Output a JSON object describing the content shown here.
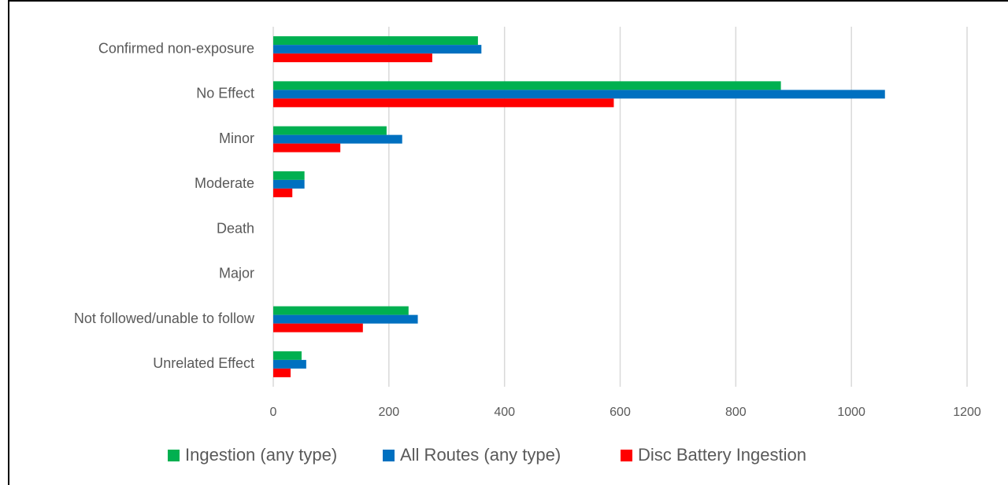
{
  "chart_data": {
    "type": "hbar",
    "categories": [
      "Confirmed non-exposure",
      "No Effect",
      "Minor",
      "Moderate",
      "Death",
      "Major",
      "Not followed/unable to follow",
      "Unrelated Effect"
    ],
    "series": [
      {
        "name": "Ingestion (any type)",
        "color": "#00b050",
        "values": [
          354,
          878,
          196,
          54,
          0,
          0,
          234,
          49
        ]
      },
      {
        "name": "All Routes (any type)",
        "color": "#0070c0",
        "values": [
          360,
          1058,
          223,
          54,
          0,
          0,
          250,
          57
        ]
      },
      {
        "name": "Disc Battery Ingestion",
        "color": "#ff0000",
        "values": [
          275,
          589,
          116,
          33,
          0,
          0,
          155,
          30
        ]
      }
    ],
    "xlim": [
      0,
      1200
    ],
    "xticks": [
      0,
      200,
      400,
      600,
      800,
      1000,
      1200
    ],
    "grid": true,
    "legend": "bottom"
  }
}
